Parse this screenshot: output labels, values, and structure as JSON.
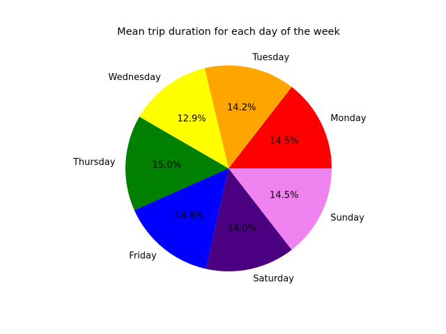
{
  "chart_data": {
    "type": "pie",
    "title": "Mean trip duration for each day of the week",
    "start_angle_deg": 0,
    "direction": "counterclockwise",
    "slices": [
      {
        "label": "Monday",
        "pct_text": "14.5%",
        "value": 14.5,
        "color": "#ff0000"
      },
      {
        "label": "Tuesday",
        "pct_text": "14.2%",
        "value": 14.2,
        "color": "#ffa500"
      },
      {
        "label": "Wednesday",
        "pct_text": "12.9%",
        "value": 12.9,
        "color": "#ffff00"
      },
      {
        "label": "Thursday",
        "pct_text": "15.0%",
        "value": 15.0,
        "color": "#008000"
      },
      {
        "label": "Friday",
        "pct_text": "14.8%",
        "value": 14.8,
        "color": "#0000ff"
      },
      {
        "label": "Saturday",
        "pct_text": "14.0%",
        "value": 14.0,
        "color": "#4b0082"
      },
      {
        "label": "Sunday",
        "pct_text": "14.5%",
        "value": 14.5,
        "color": "#ee82ee"
      }
    ]
  }
}
